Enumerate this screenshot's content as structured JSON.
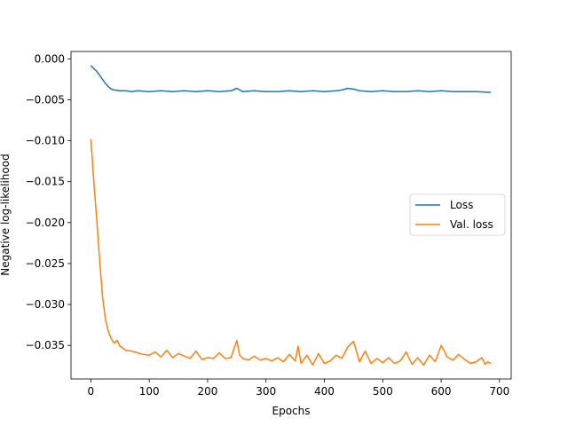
{
  "chart_data": {
    "type": "line",
    "title": "",
    "xlabel": "Epochs",
    "ylabel": "Negative log-likelihood",
    "xlim": [
      -34,
      720
    ],
    "ylim": [
      -0.0391,
      0.0009
    ],
    "xticks": [
      0,
      100,
      200,
      300,
      400,
      500,
      600,
      700
    ],
    "xtick_labels": [
      "0",
      "100",
      "200",
      "300",
      "400",
      "500",
      "600",
      "700"
    ],
    "yticks": [
      0.0,
      -0.005,
      -0.01,
      -0.015,
      -0.02,
      -0.025,
      -0.03,
      -0.035
    ],
    "ytick_labels": [
      "0.000",
      "−0.005",
      "−0.010",
      "−0.015",
      "−0.020",
      "−0.025",
      "−0.030",
      "−0.035"
    ],
    "grid": false,
    "legend_position": "center-right",
    "series": [
      {
        "name": "Loss",
        "color": "#1f77b4",
        "x": [
          0,
          5,
          10,
          15,
          20,
          25,
          30,
          35,
          40,
          50,
          60,
          70,
          80,
          100,
          120,
          140,
          160,
          180,
          200,
          220,
          240,
          250,
          260,
          280,
          300,
          320,
          340,
          360,
          380,
          400,
          420,
          430,
          440,
          450,
          460,
          480,
          500,
          520,
          540,
          560,
          580,
          600,
          620,
          640,
          660,
          685
        ],
        "values": [
          -0.0008,
          -0.0012,
          -0.0015,
          -0.002,
          -0.0025,
          -0.003,
          -0.0034,
          -0.0037,
          -0.0038,
          -0.0039,
          -0.0039,
          -0.004,
          -0.0039,
          -0.004,
          -0.0039,
          -0.004,
          -0.0039,
          -0.004,
          -0.0039,
          -0.004,
          -0.0039,
          -0.0036,
          -0.004,
          -0.0039,
          -0.004,
          -0.004,
          -0.0039,
          -0.004,
          -0.0039,
          -0.004,
          -0.0039,
          -0.0038,
          -0.0036,
          -0.0037,
          -0.0039,
          -0.004,
          -0.0039,
          -0.004,
          -0.004,
          -0.0039,
          -0.004,
          -0.0039,
          -0.004,
          -0.004,
          -0.004,
          -0.0041
        ]
      },
      {
        "name": "Val. loss",
        "color": "#ff7f0e",
        "x": [
          0,
          5,
          10,
          15,
          20,
          25,
          30,
          35,
          40,
          45,
          50,
          60,
          70,
          80,
          90,
          100,
          110,
          120,
          130,
          140,
          150,
          160,
          170,
          180,
          190,
          200,
          210,
          220,
          230,
          240,
          250,
          255,
          260,
          270,
          280,
          290,
          300,
          310,
          320,
          330,
          340,
          350,
          355,
          360,
          370,
          380,
          390,
          400,
          410,
          420,
          430,
          440,
          450,
          460,
          470,
          480,
          490,
          500,
          510,
          520,
          530,
          540,
          550,
          560,
          570,
          580,
          590,
          600,
          605,
          610,
          620,
          630,
          640,
          650,
          660,
          670,
          675,
          680,
          685
        ],
        "values": [
          -0.0098,
          -0.015,
          -0.0195,
          -0.0245,
          -0.029,
          -0.0318,
          -0.0333,
          -0.0342,
          -0.0347,
          -0.0344,
          -0.0351,
          -0.0356,
          -0.0357,
          -0.0359,
          -0.0361,
          -0.0362,
          -0.0358,
          -0.0364,
          -0.0356,
          -0.0365,
          -0.036,
          -0.0363,
          -0.0366,
          -0.0357,
          -0.0367,
          -0.0365,
          -0.0366,
          -0.0359,
          -0.0366,
          -0.0365,
          -0.0344,
          -0.0362,
          -0.0366,
          -0.0368,
          -0.0363,
          -0.0368,
          -0.0366,
          -0.0369,
          -0.0365,
          -0.037,
          -0.0361,
          -0.0369,
          -0.0351,
          -0.0372,
          -0.0362,
          -0.0374,
          -0.036,
          -0.0372,
          -0.0369,
          -0.0362,
          -0.0366,
          -0.0352,
          -0.0345,
          -0.037,
          -0.0357,
          -0.0372,
          -0.0366,
          -0.0371,
          -0.0365,
          -0.0372,
          -0.0369,
          -0.0358,
          -0.0373,
          -0.0365,
          -0.0374,
          -0.0362,
          -0.037,
          -0.035,
          -0.0356,
          -0.0364,
          -0.0368,
          -0.0361,
          -0.0367,
          -0.0372,
          -0.037,
          -0.0365,
          -0.0373,
          -0.037,
          -0.0372
        ]
      }
    ]
  }
}
